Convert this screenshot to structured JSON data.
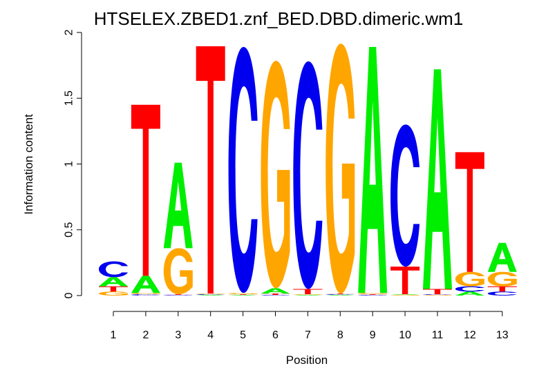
{
  "chart_data": {
    "type": "sequence-logo",
    "title": "HTSELEX.ZBED1.znf_BED.DBD.dimeric.wm1",
    "xlabel": "Position",
    "ylabel": "Information content",
    "ylim": [
      0,
      2
    ],
    "yticks": [
      "0",
      "0.5",
      "1",
      "1.5",
      "2"
    ],
    "positions": [
      "1",
      "2",
      "3",
      "4",
      "5",
      "6",
      "7",
      "8",
      "9",
      "10",
      "11",
      "12",
      "13"
    ],
    "colors": {
      "A": "#00ee00",
      "C": "#0000ee",
      "G": "#ffa500",
      "T": "#ff0000"
    },
    "stacks": [
      [
        {
          "letter": "G",
          "height": 0.03
        },
        {
          "letter": "T",
          "height": 0.04
        },
        {
          "letter": "A",
          "height": 0.07
        },
        {
          "letter": "C",
          "height": 0.12
        }
      ],
      [
        {
          "letter": "C",
          "height": 0.01
        },
        {
          "letter": "G",
          "height": 0.01
        },
        {
          "letter": "A",
          "height": 0.13
        },
        {
          "letter": "T",
          "height": 1.3
        }
      ],
      [
        {
          "letter": "C",
          "height": 0.005
        },
        {
          "letter": "T",
          "height": 0.005
        },
        {
          "letter": "G",
          "height": 0.35
        },
        {
          "letter": "A",
          "height": 0.65
        }
      ],
      [
        {
          "letter": "A",
          "height": 0.005
        },
        {
          "letter": "C",
          "height": 0.005
        },
        {
          "letter": "G",
          "height": 0.005
        },
        {
          "letter": "T",
          "height": 1.88
        }
      ],
      [
        {
          "letter": "A",
          "height": 0.005
        },
        {
          "letter": "T",
          "height": 0.005
        },
        {
          "letter": "G",
          "height": 0.01
        },
        {
          "letter": "C",
          "height": 1.87
        }
      ],
      [
        {
          "letter": "C",
          "height": 0.005
        },
        {
          "letter": "T",
          "height": 0.01
        },
        {
          "letter": "A",
          "height": 0.04
        },
        {
          "letter": "G",
          "height": 1.73
        }
      ],
      [
        {
          "letter": "A",
          "height": 0.005
        },
        {
          "letter": "G",
          "height": 0.005
        },
        {
          "letter": "T",
          "height": 0.04
        },
        {
          "letter": "C",
          "height": 1.73
        }
      ],
      [
        {
          "letter": "A",
          "height": 0.005
        },
        {
          "letter": "C",
          "height": 0.005
        },
        {
          "letter": "T",
          "height": 0.005
        },
        {
          "letter": "G",
          "height": 1.9
        }
      ],
      [
        {
          "letter": "C",
          "height": 0.005
        },
        {
          "letter": "T",
          "height": 0.005
        },
        {
          "letter": "G",
          "height": 0.01
        },
        {
          "letter": "A",
          "height": 1.87
        }
      ],
      [
        {
          "letter": "G",
          "height": 0.005
        },
        {
          "letter": "A",
          "height": 0.005
        },
        {
          "letter": "T",
          "height": 0.21
        },
        {
          "letter": "C",
          "height": 1.08
        }
      ],
      [
        {
          "letter": "G",
          "height": 0.005
        },
        {
          "letter": "C",
          "height": 0.005
        },
        {
          "letter": "T",
          "height": 0.04
        },
        {
          "letter": "A",
          "height": 1.67
        }
      ],
      [
        {
          "letter": "A",
          "height": 0.03
        },
        {
          "letter": "C",
          "height": 0.04
        },
        {
          "letter": "G",
          "height": 0.11
        },
        {
          "letter": "T",
          "height": 0.91
        }
      ],
      [
        {
          "letter": "C",
          "height": 0.03
        },
        {
          "letter": "T",
          "height": 0.04
        },
        {
          "letter": "G",
          "height": 0.11
        },
        {
          "letter": "A",
          "height": 0.22
        }
      ]
    ]
  }
}
